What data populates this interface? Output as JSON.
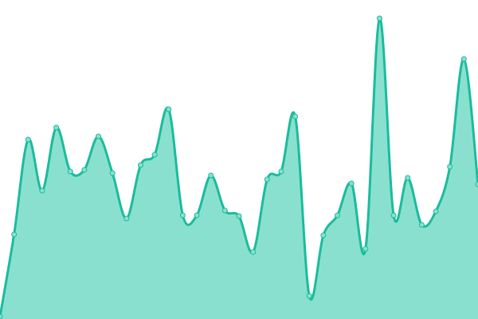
{
  "chart_data": {
    "type": "area",
    "smooth": true,
    "axes_visible": false,
    "grid": false,
    "ylim": [
      0,
      400
    ],
    "x": [
      0,
      1,
      2,
      3,
      4,
      5,
      6,
      7,
      8,
      9,
      10,
      11,
      12,
      13,
      14,
      15,
      16,
      17,
      18,
      19,
      20,
      21,
      22,
      23,
      24,
      25,
      26,
      27,
      28,
      29,
      30,
      31,
      32,
      33,
      34
    ],
    "values": [
      3,
      106,
      225,
      161,
      240,
      185,
      187,
      229,
      183,
      126,
      193,
      206,
      263,
      130,
      130,
      180,
      136,
      129,
      84,
      175,
      185,
      254,
      29,
      105,
      130,
      170,
      88,
      377,
      130,
      177,
      118,
      135,
      191,
      326,
      169
    ],
    "colors": {
      "line": "#1abc9c",
      "fill": "#8ae0cf",
      "marker_fill": "#8ae0cf"
    }
  }
}
